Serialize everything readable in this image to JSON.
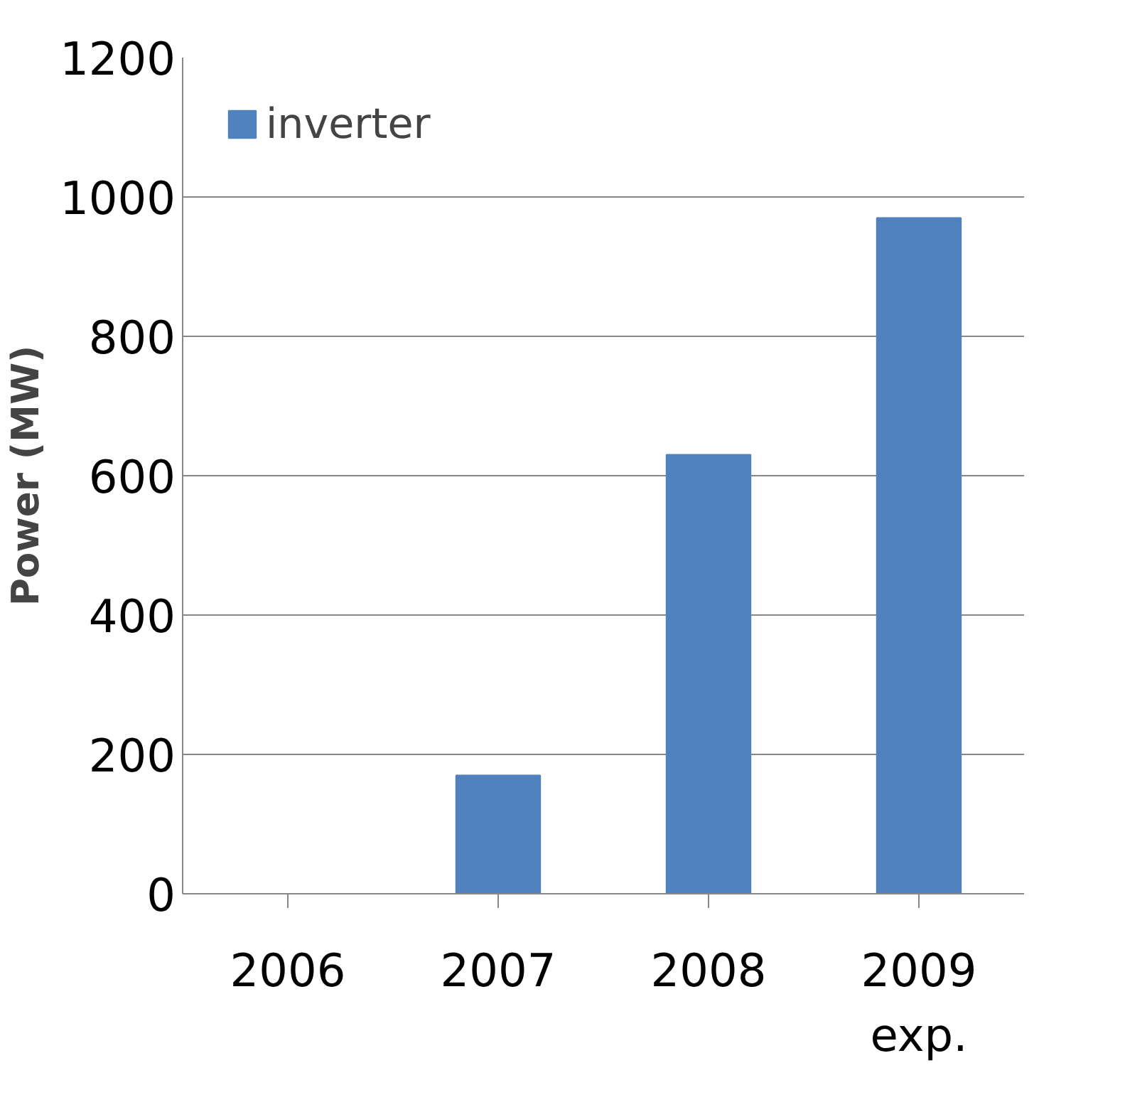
{
  "chart_data": {
    "type": "bar",
    "ylabel": "Power (MW)",
    "categories": [
      "2006",
      "2007",
      "2008",
      "2009\nexp."
    ],
    "series": [
      {
        "name": "inverter",
        "color": "#4f81bd",
        "values": [
          null,
          170,
          630,
          970
        ]
      }
    ],
    "ylim": [
      0,
      1200
    ],
    "yticks": [
      0,
      200,
      400,
      600,
      800,
      1000,
      1200
    ],
    "grid": "y",
    "legend": "top left"
  }
}
